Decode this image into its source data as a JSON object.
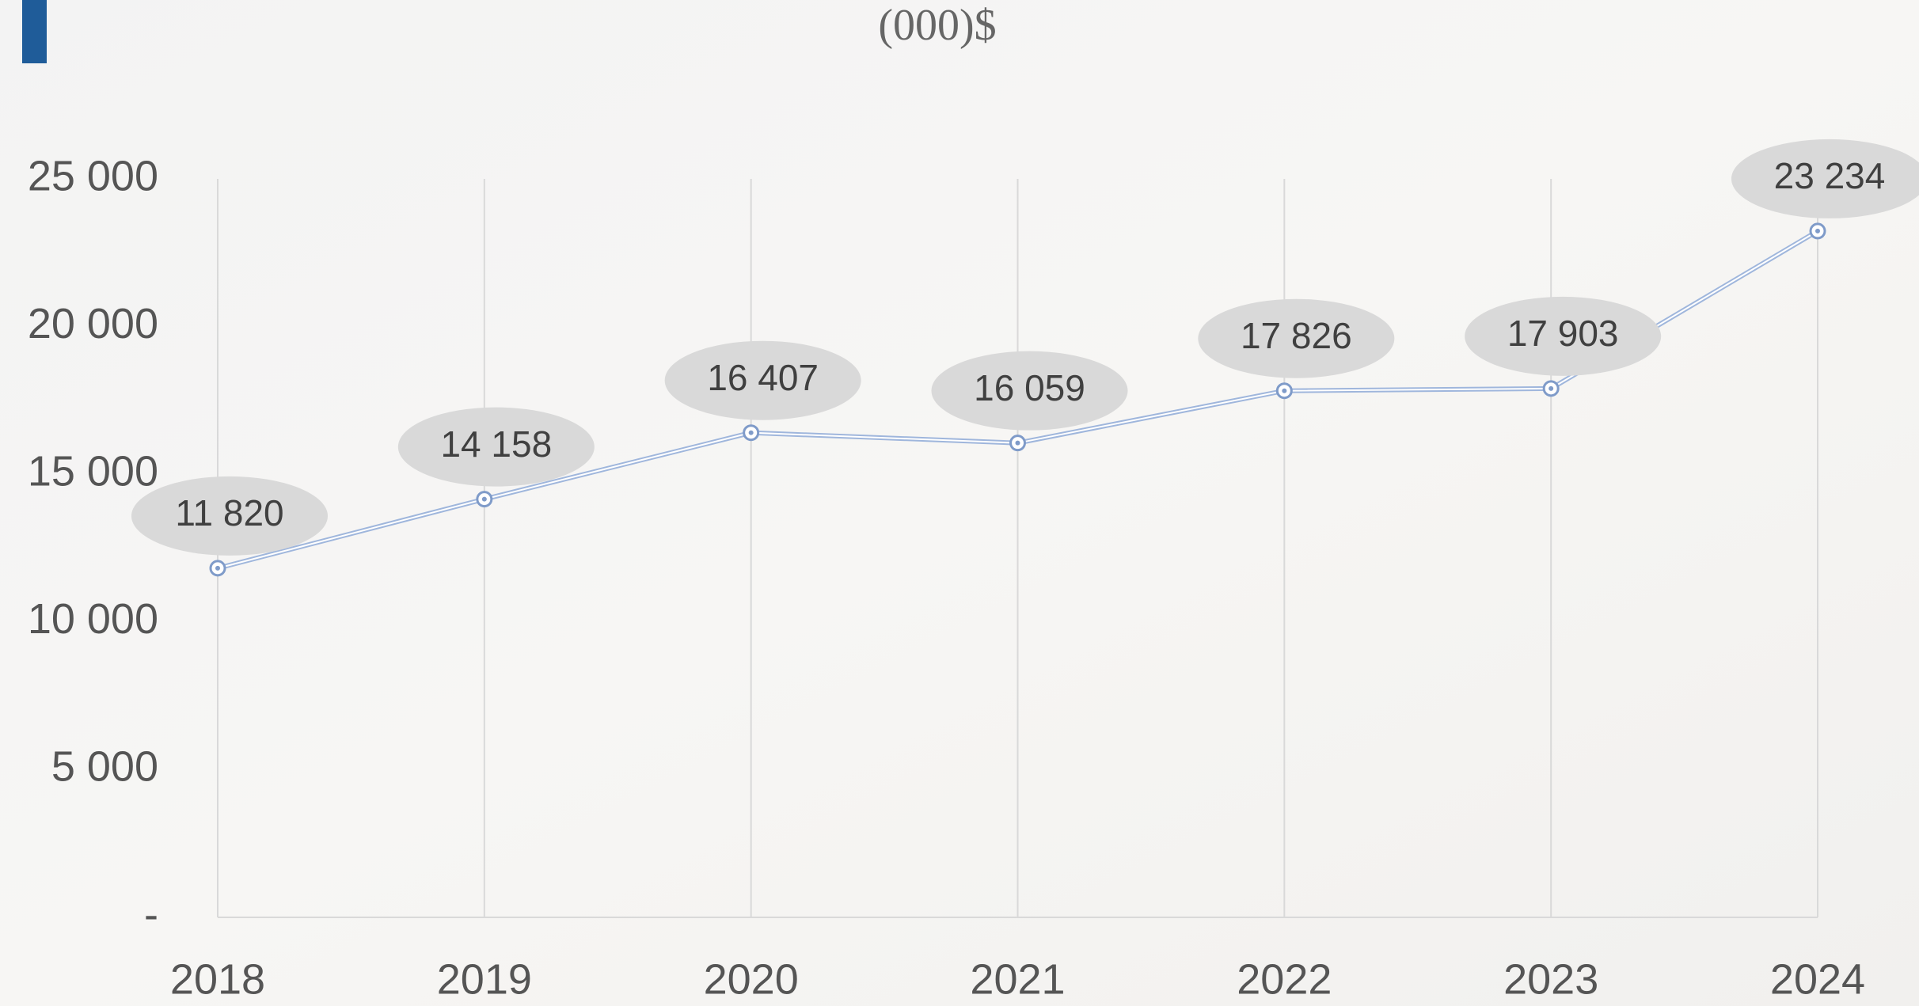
{
  "chart_data": {
    "type": "line",
    "title": "(000)$",
    "categories": [
      "2018",
      "2019",
      "2020",
      "2021",
      "2022",
      "2023",
      "2024"
    ],
    "series": [
      {
        "color": "#9fb6dc",
        "values": [
          11820,
          14158,
          16407,
          16059,
          17826,
          17903,
          23234
        ],
        "value_labels": [
          "11 820",
          "14 158",
          "16 407",
          "16 059",
          "17 826",
          "17 903",
          "23 234"
        ]
      }
    ],
    "ylim": [
      0,
      25000
    ],
    "yticks": [
      {
        "value": 0,
        "label": "-"
      },
      {
        "value": 5000,
        "label": "5 000"
      },
      {
        "value": 10000,
        "label": "10 000"
      },
      {
        "value": 15000,
        "label": "15 000"
      },
      {
        "value": 20000,
        "label": "20 000"
      },
      {
        "value": 25000,
        "label": "25 000"
      }
    ],
    "grid": true
  }
}
